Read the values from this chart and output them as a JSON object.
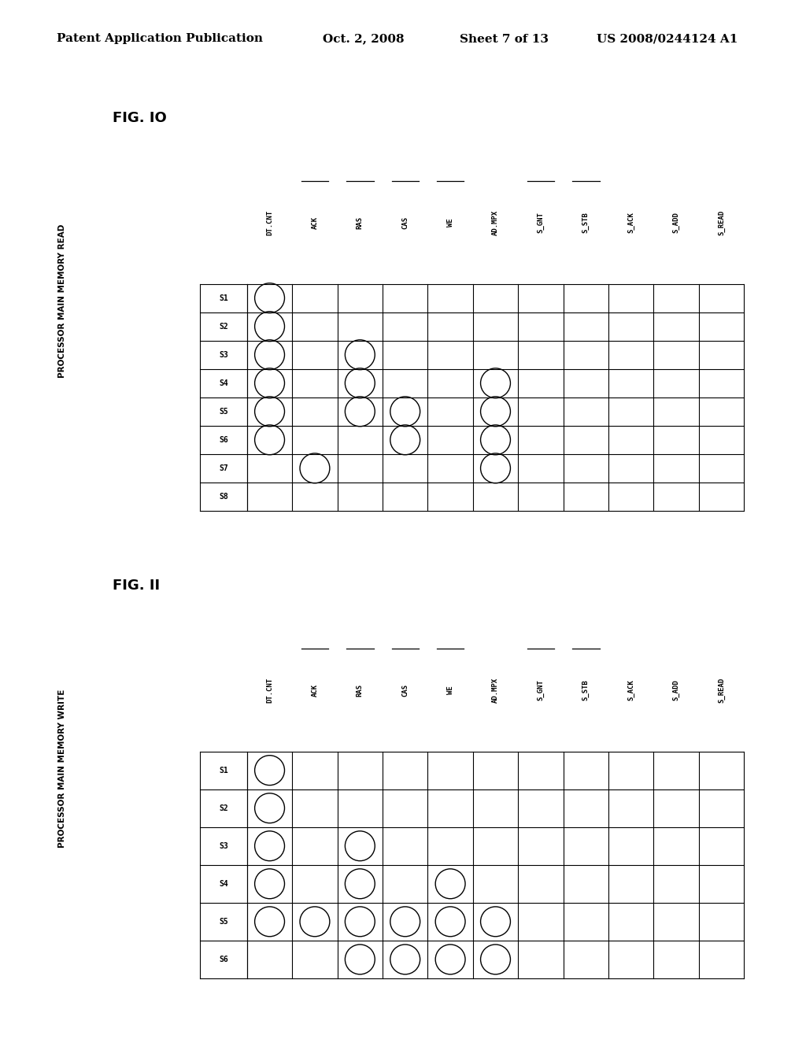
{
  "header_text": "Patent Application Publication",
  "header_date": "Oct. 2, 2008",
  "header_sheet": "Sheet 7 of 13",
  "header_patent": "US 2008/0244124 A1",
  "fig10_title": "FIG. IO",
  "fig10_subtitle": "PROCESSOR MAIN MEMORY READ",
  "fig11_title": "FIG. II",
  "fig11_subtitle": "PROCESSOR MAIN MEMORY WRITE",
  "fig10_columns": [
    "DT.CNT",
    "ACK",
    "RAS",
    "CAS",
    "WE",
    "AD.MPX",
    "S_GNT",
    "S_STB",
    "S_ACK",
    "S_ADD",
    "S_READ"
  ],
  "fig10_rows": [
    "S1",
    "S2",
    "S3",
    "S4",
    "S5",
    "S6",
    "S7",
    "S8"
  ],
  "fig10_circles_colrow": [
    [
      0,
      0
    ],
    [
      0,
      1
    ],
    [
      0,
      2
    ],
    [
      0,
      3
    ],
    [
      0,
      4
    ],
    [
      0,
      5
    ],
    [
      2,
      2
    ],
    [
      2,
      3
    ],
    [
      2,
      4
    ],
    [
      3,
      4
    ],
    [
      3,
      5
    ],
    [
      5,
      3
    ],
    [
      5,
      4
    ],
    [
      5,
      5
    ],
    [
      5,
      6
    ],
    [
      1,
      6
    ]
  ],
  "fig11_columns": [
    "DT.CNT",
    "ACK",
    "RAS",
    "CAS",
    "WE",
    "AD.MPX",
    "S_GNT",
    "S_STB",
    "S_ACK",
    "S_ADD",
    "S_READ"
  ],
  "fig11_rows": [
    "S1",
    "S2",
    "S3",
    "S4",
    "S5",
    "S6"
  ],
  "fig11_circles_colrow": [
    [
      0,
      0
    ],
    [
      0,
      1
    ],
    [
      0,
      2
    ],
    [
      0,
      3
    ],
    [
      0,
      4
    ],
    [
      1,
      4
    ],
    [
      2,
      2
    ],
    [
      2,
      3
    ],
    [
      2,
      4
    ],
    [
      2,
      5
    ],
    [
      3,
      4
    ],
    [
      3,
      5
    ],
    [
      4,
      3
    ],
    [
      4,
      4
    ],
    [
      4,
      5
    ],
    [
      5,
      4
    ],
    [
      5,
      5
    ]
  ],
  "fig10_overline_cols": [
    1,
    2,
    3,
    4,
    6,
    7
  ],
  "fig11_overline_cols": [
    1,
    2,
    3,
    4,
    6,
    7
  ],
  "background": "#ffffff",
  "line_color": "#000000",
  "text_color": "#000000"
}
